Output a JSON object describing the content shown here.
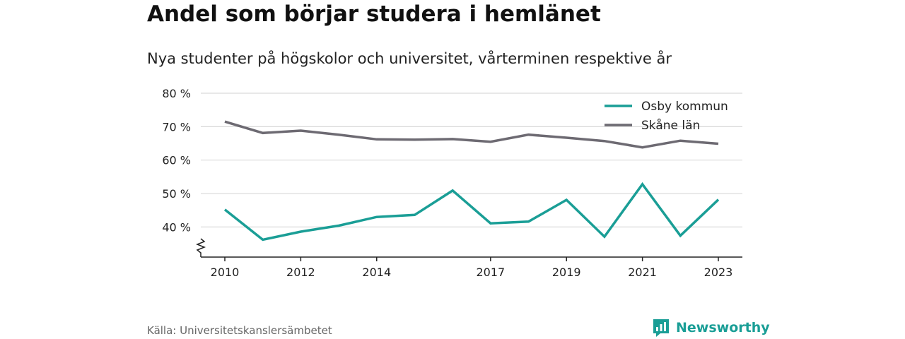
{
  "title": "Andel som börjar studera i hemlänet",
  "subtitle": "Nya studenter på högskolor och universitet, vårterminen respektive år",
  "source": "Källa: Universitetskanslersämbetet",
  "brand": {
    "name": "Newsworthy",
    "icon": "bar-chart-speech-bubble-icon",
    "color": "#1a9e96"
  },
  "chart_data": {
    "type": "line",
    "x": [
      2010,
      2011,
      2012,
      2013,
      2014,
      2015,
      2016,
      2017,
      2018,
      2019,
      2020,
      2021,
      2022,
      2023
    ],
    "x_tick_labels": [
      "2010",
      "2012",
      "2014",
      "2017",
      "2019",
      "2021",
      "2023"
    ],
    "y_ticks": [
      40,
      50,
      60,
      70,
      80
    ],
    "y_tick_labels": [
      "40 %",
      "50 %",
      "60 %",
      "70 %",
      "80 %"
    ],
    "ylim": [
      31,
      80
    ],
    "y_axis_break": true,
    "grid": true,
    "legend_position": "top-right",
    "series": [
      {
        "name": "Osby kommun",
        "color": "#1a9e96",
        "values": [
          45.2,
          36.2,
          38.6,
          40.4,
          43.0,
          43.6,
          50.9,
          41.1,
          41.6,
          48.1,
          37.1,
          52.8,
          37.4,
          48.2
        ]
      },
      {
        "name": "Skåne län",
        "color": "#6d6a72",
        "values": [
          71.5,
          68.1,
          68.8,
          67.6,
          66.2,
          66.1,
          66.3,
          65.5,
          67.6,
          66.7,
          65.7,
          63.8,
          65.8,
          64.9
        ]
      }
    ]
  }
}
